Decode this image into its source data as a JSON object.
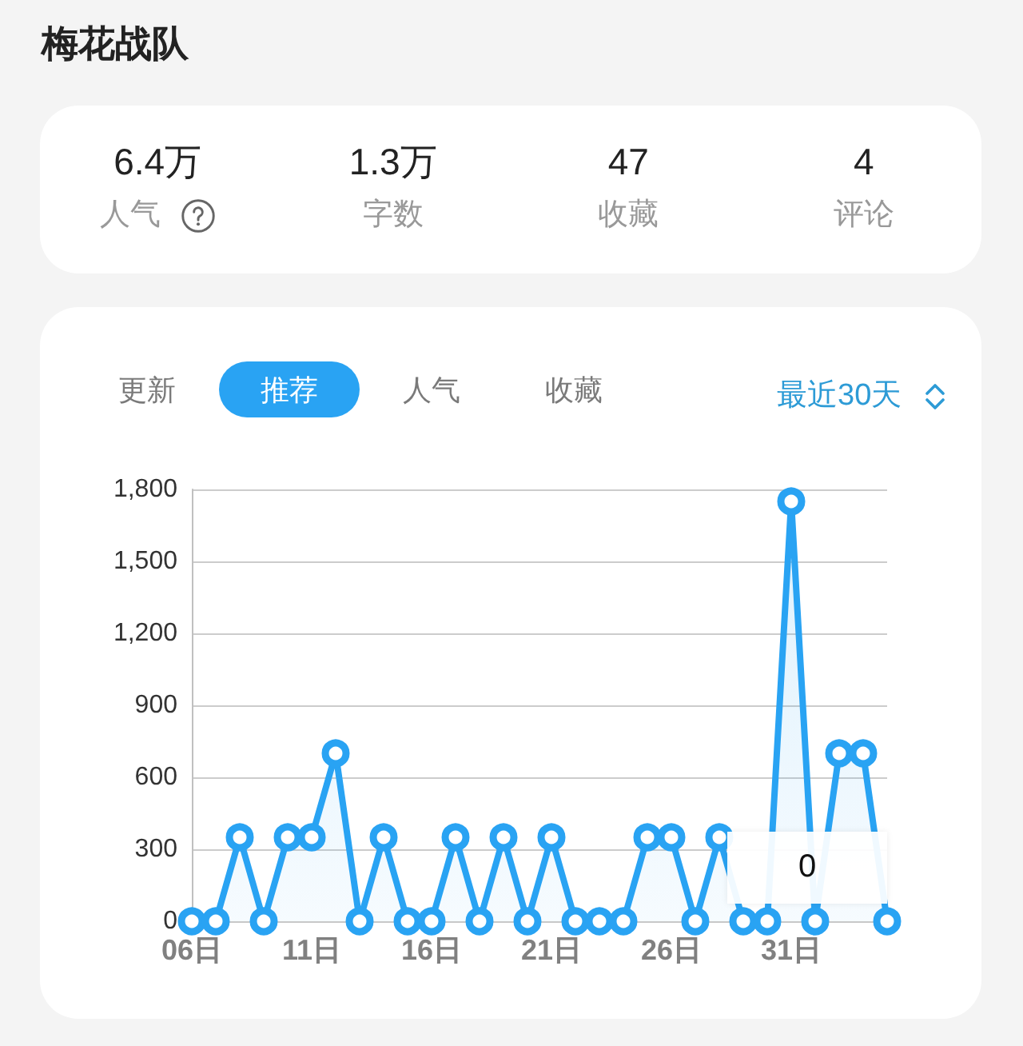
{
  "chart_data": [
    {
      "type": "other",
      "title": "梅花战队",
      "annotations": [
        "6.4万",
        "人气",
        "1.3万",
        "字数",
        "47",
        "收藏",
        "4",
        "评论"
      ]
    },
    {
      "type": "area",
      "subtitle": "最近30天",
      "annotations": [
        "更新",
        "推荐",
        "人气",
        "收藏",
        "0"
      ],
      "categories": [
        "06日",
        null,
        null,
        null,
        null,
        "11日",
        null,
        null,
        null,
        null,
        "16日",
        null,
        null,
        null,
        null,
        "21日",
        null,
        null,
        null,
        null,
        "26日",
        null,
        null,
        null,
        null,
        "31日",
        null,
        null,
        null,
        null
      ],
      "values": [
        0,
        0,
        350,
        0,
        350,
        350,
        700,
        0,
        350,
        0,
        0,
        350,
        0,
        350,
        0,
        350,
        0,
        0,
        0,
        350,
        350,
        0,
        350,
        0,
        0,
        1750,
        0,
        700,
        700,
        0
      ],
      "color": "#29a3f3",
      "ylim": [
        0,
        1800
      ],
      "yticks": [
        0,
        300,
        600,
        900,
        {
          "value": 1200,
          "label": "1,200"
        },
        {
          "value": 1500,
          "label": "1,500"
        },
        {
          "value": 1800,
          "label": "1,800"
        }
      ],
      "grid": "y",
      "marker": "circle"
    }
  ]
}
